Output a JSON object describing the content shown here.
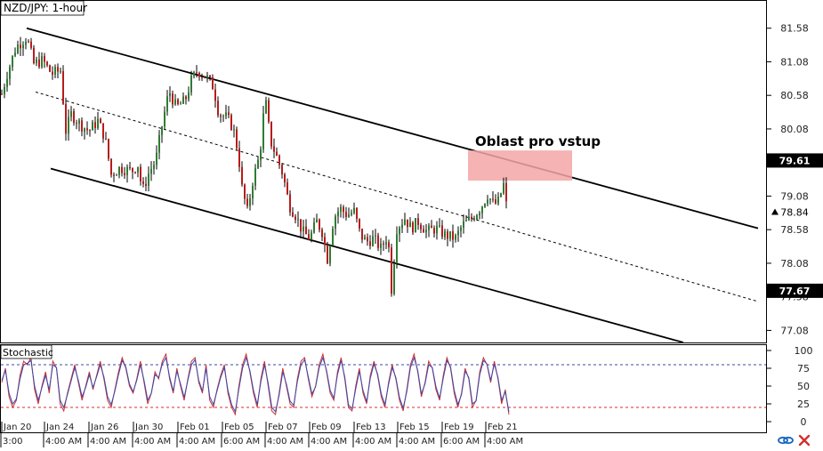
{
  "title": "NZD/JPY: 1-hour",
  "annotation": "Oblast pro vstup",
  "indicator_label": "Stochastic",
  "colors": {
    "bull_candle": "#2e7d32",
    "bear_candle": "#b71c1c",
    "wick": "#000000",
    "zone": "#f4a6a6",
    "channel": "#000000",
    "stoch_main": "#d32f2f",
    "stoch_signal": "#3949ab",
    "level_80": "#3949ab",
    "level_20": "#d32f2f"
  },
  "icons": [
    "link-icon",
    "close-icon"
  ],
  "chart_data": [
    {
      "type": "candlestick",
      "title": "NZD/JPY: 1-hour",
      "ylim": [
        76.9,
        82.0
      ],
      "y_ticks": [
        81.58,
        81.08,
        80.58,
        80.08,
        79.08,
        78.58,
        78.08,
        77.58,
        77.08
      ],
      "price_labels": [
        {
          "value": 79.61,
          "text": "79.61"
        },
        {
          "value": 78.84,
          "text": "78.84"
        },
        {
          "value": 77.67,
          "text": "77.67"
        }
      ],
      "x_date_labels": [
        "Jan 20",
        "Jan 24",
        "Jan 26",
        "Jan 30",
        "Feb 01",
        "Feb 05",
        "Feb 07",
        "Feb 09",
        "Feb 13",
        "Feb 15",
        "Feb 19",
        "Feb 21"
      ],
      "x_time_labels": [
        "3:00",
        "4:00 AM",
        "4:00 AM",
        "4:00 AM",
        "4:00 AM",
        "6:00 AM",
        "4:00 AM",
        "4:00 AM",
        "4:00 AM",
        "4:00 AM",
        "6:00 AM",
        "4:00 AM"
      ],
      "close_path": [
        [
          0,
          80.5
        ],
        [
          8,
          80.9
        ],
        [
          18,
          81.3
        ],
        [
          30,
          81.45
        ],
        [
          38,
          81.05
        ],
        [
          48,
          81.1
        ],
        [
          58,
          80.9
        ],
        [
          68,
          80.95
        ],
        [
          74,
          80.05
        ],
        [
          80,
          80.3
        ],
        [
          90,
          80.15
        ],
        [
          100,
          80.05
        ],
        [
          110,
          80.2
        ],
        [
          118,
          79.95
        ],
        [
          125,
          79.4
        ],
        [
          135,
          79.5
        ],
        [
          148,
          79.45
        ],
        [
          155,
          79.55
        ],
        [
          160,
          79.15
        ],
        [
          168,
          79.45
        ],
        [
          175,
          79.6
        ],
        [
          183,
          80.2
        ],
        [
          190,
          80.65
        ],
        [
          198,
          80.4
        ],
        [
          208,
          80.5
        ],
        [
          215,
          80.8
        ],
        [
          222,
          80.95
        ],
        [
          232,
          80.85
        ],
        [
          240,
          80.7
        ],
        [
          246,
          80.3
        ],
        [
          255,
          80.25
        ],
        [
          262,
          80.1
        ],
        [
          268,
          79.7
        ],
        [
          272,
          79.2
        ],
        [
          278,
          78.85
        ],
        [
          284,
          79.3
        ],
        [
          292,
          79.7
        ],
        [
          298,
          80.55
        ],
        [
          304,
          79.9
        ],
        [
          310,
          79.7
        ],
        [
          318,
          79.4
        ],
        [
          325,
          78.95
        ],
        [
          332,
          78.8
        ],
        [
          340,
          78.55
        ],
        [
          348,
          78.45
        ],
        [
          356,
          78.7
        ],
        [
          362,
          78.55
        ],
        [
          368,
          78.15
        ],
        [
          375,
          78.75
        ],
        [
          382,
          78.9
        ],
        [
          390,
          78.8
        ],
        [
          398,
          78.85
        ],
        [
          405,
          78.5
        ],
        [
          412,
          78.4
        ],
        [
          420,
          78.45
        ],
        [
          428,
          78.3
        ],
        [
          436,
          78.5
        ],
        [
          440,
          77.7
        ],
        [
          446,
          78.6
        ],
        [
          455,
          78.75
        ],
        [
          462,
          78.6
        ],
        [
          470,
          78.7
        ],
        [
          480,
          78.55
        ],
        [
          490,
          78.6
        ],
        [
          500,
          78.5
        ],
        [
          512,
          78.45
        ],
        [
          520,
          78.65
        ],
        [
          530,
          78.75
        ],
        [
          540,
          78.9
        ],
        [
          548,
          79.1
        ],
        [
          555,
          78.95
        ],
        [
          560,
          79.0
        ],
        [
          566,
          79.25
        ],
        [
          571,
          78.75
        ]
      ],
      "channel_lines": [
        {
          "name": "upper",
          "style": "solid",
          "points": [
            [
              30,
              81.58
            ],
            [
              852,
              78.6
            ]
          ]
        },
        {
          "name": "middle",
          "style": "dashed",
          "points": [
            [
              40,
              80.63
            ],
            [
              852,
              77.51
            ]
          ]
        },
        {
          "name": "lower",
          "style": "solid",
          "points": [
            [
              57,
              79.49
            ],
            [
              768,
              76.9
            ]
          ]
        }
      ],
      "zone": {
        "label": "Oblast pro vstup",
        "x0": 526,
        "x1": 643,
        "y0": 79.31,
        "y1": 79.76
      }
    },
    {
      "type": "line",
      "title": "Stochastic",
      "ylim": [
        0,
        100
      ],
      "y_ticks": [
        100,
        75,
        50,
        25,
        0
      ],
      "levels": [
        80,
        20
      ],
      "series": [
        {
          "values": [
            55,
            75,
            35,
            20,
            30,
            65,
            85,
            80,
            90,
            45,
            25,
            50,
            70,
            40,
            85,
            75,
            25,
            15,
            40,
            60,
            80,
            55,
            30,
            50,
            70,
            45,
            65,
            85,
            60,
            30,
            20,
            45,
            70,
            90,
            75,
            50,
            40,
            60,
            85,
            55,
            25,
            40,
            70,
            60,
            85,
            95,
            60,
            40,
            75,
            50,
            30,
            60,
            85,
            90,
            55,
            40,
            80,
            30,
            20,
            45,
            65,
            80,
            40,
            20,
            10,
            50,
            80,
            95,
            70,
            40,
            20,
            60,
            85,
            50,
            15,
            10,
            40,
            75,
            50,
            25,
            20,
            60,
            85,
            90,
            60,
            35,
            50,
            80,
            95,
            70,
            40,
            30,
            70,
            90,
            60,
            20,
            15,
            50,
            75,
            40,
            25,
            65,
            85,
            65,
            35,
            20,
            55,
            80,
            60,
            30,
            15,
            45,
            80,
            95,
            70,
            35,
            55,
            85,
            75,
            45,
            30,
            65,
            90,
            75,
            40,
            20,
            40,
            75,
            60,
            20,
            30,
            70,
            90,
            80,
            55,
            85,
            60,
            25,
            45,
            10
          ]
        },
        {
          "values": [
            58,
            72,
            40,
            25,
            32,
            60,
            80,
            82,
            86,
            50,
            30,
            48,
            65,
            45,
            80,
            76,
            30,
            20,
            38,
            57,
            76,
            58,
            35,
            48,
            66,
            48,
            63,
            80,
            63,
            35,
            24,
            43,
            66,
            86,
            77,
            53,
            42,
            58,
            80,
            58,
            30,
            40,
            66,
            62,
            81,
            90,
            63,
            43,
            71,
            53,
            34,
            58,
            80,
            87,
            58,
            43,
            75,
            35,
            24,
            43,
            62,
            76,
            44,
            24,
            14,
            46,
            75,
            90,
            72,
            44,
            24,
            56,
            80,
            54,
            20,
            14,
            37,
            70,
            53,
            29,
            23,
            56,
            80,
            87,
            63,
            39,
            49,
            76,
            90,
            72,
            44,
            33,
            66,
            86,
            63,
            24,
            18,
            46,
            71,
            44,
            28,
            61,
            81,
            67,
            39,
            24,
            52,
            76,
            62,
            34,
            19,
            42,
            76,
            90,
            72,
            39,
            53,
            80,
            76,
            49,
            33,
            61,
            86,
            77,
            44,
            24,
            38,
            71,
            62,
            25,
            29,
            66,
            86,
            81,
            58,
            81,
            62,
            30,
            42,
            14
          ]
        }
      ]
    }
  ]
}
